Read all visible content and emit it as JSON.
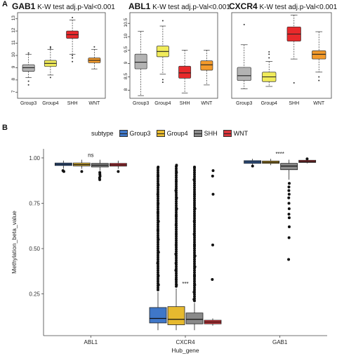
{
  "panels": {
    "A": {
      "letter": "A"
    },
    "B": {
      "letter": "B"
    }
  },
  "chart_data": [
    {
      "type": "boxplot",
      "gene": "GAB1",
      "test_label": "K-W test adj.p-Val<0.001",
      "categories": [
        "Group3",
        "Group4",
        "SHH",
        "WNT"
      ],
      "colors": [
        "#b3b3b3",
        "#f0eb5a",
        "#e8292b",
        "#f39a2b"
      ],
      "ylim": [
        6.5,
        13.5
      ],
      "yticks": [
        7,
        8,
        9,
        10,
        11,
        12,
        13
      ],
      "boxes": [
        {
          "min": 8.2,
          "q1": 8.7,
          "median": 9.0,
          "q3": 9.25,
          "max": 10.1,
          "outliers": [
            7.6,
            7.9,
            10.2
          ]
        },
        {
          "min": 8.4,
          "q1": 9.1,
          "median": 9.35,
          "q3": 9.6,
          "max": 10.5,
          "outliers": [
            8.2,
            10.6,
            10.7
          ]
        },
        {
          "min": 10.1,
          "q1": 11.4,
          "median": 11.7,
          "q3": 12.0,
          "max": 12.9,
          "outliers": [
            9.5,
            9.8,
            10.0,
            13.1
          ]
        },
        {
          "min": 8.9,
          "q1": 9.4,
          "median": 9.6,
          "q3": 9.8,
          "max": 10.5,
          "outliers": [
            10.7
          ]
        }
      ]
    },
    {
      "type": "boxplot",
      "gene": "ABL1",
      "test_label": "K-W test adj.p-Val<0.001",
      "categories": [
        "Group3",
        "Group4",
        "SHH",
        "WNT"
      ],
      "colors": [
        "#b3b3b3",
        "#f0eb5a",
        "#e8292b",
        "#f39a2b"
      ],
      "ylim": [
        7.7,
        10.9
      ],
      "yticks": [
        8.0,
        8.5,
        9.0,
        9.5,
        10.0,
        10.5
      ],
      "boxes": [
        {
          "min": 7.8,
          "q1": 8.8,
          "median": 9.05,
          "q3": 9.35,
          "max": 10.2,
          "outliers": []
        },
        {
          "min": 8.6,
          "q1": 9.25,
          "median": 9.45,
          "q3": 9.65,
          "max": 10.4,
          "outliers": [
            8.3,
            8.4,
            10.6
          ]
        },
        {
          "min": 7.9,
          "q1": 8.45,
          "median": 8.65,
          "q3": 8.9,
          "max": 9.5,
          "outliers": []
        },
        {
          "min": 8.2,
          "q1": 8.75,
          "median": 8.95,
          "q3": 9.1,
          "max": 9.5,
          "outliers": []
        }
      ]
    },
    {
      "type": "boxplot",
      "gene": "CXCR4",
      "test_label": "K-W test adj.p-Val<0.001",
      "categories": [
        "Group3",
        "Group4",
        "SHH",
        "WNT"
      ],
      "colors": [
        "#b3b3b3",
        "#f0eb5a",
        "#e8292b",
        "#f39a2b"
      ],
      "ylim": [
        4.2,
        11.4
      ],
      "yticks": [],
      "boxes": [
        {
          "min": 5.0,
          "q1": 5.7,
          "median": 6.1,
          "q3": 6.8,
          "max": 8.7,
          "outliers": [
            10.4
          ]
        },
        {
          "min": 5.2,
          "q1": 5.6,
          "median": 6.0,
          "q3": 6.4,
          "max": 7.3,
          "outliers": [
            7.6,
            7.9,
            8.1
          ]
        },
        {
          "min": 7.5,
          "q1": 9.0,
          "median": 9.6,
          "q3": 10.2,
          "max": 11.2,
          "outliers": [
            5.5
          ]
        },
        {
          "min": 6.4,
          "q1": 7.5,
          "median": 7.9,
          "q3": 8.2,
          "max": 9.8,
          "outliers": [
            5.7,
            6.0
          ]
        }
      ]
    },
    {
      "type": "boxplot",
      "xlabel": "Hub_gene",
      "ylabel": "Methylation_beta_value",
      "legend_title": "subtype",
      "legend_position": "top",
      "series": [
        {
          "name": "Group3",
          "color": "#3f77c8"
        },
        {
          "name": "Group4",
          "color": "#e6b92f"
        },
        {
          "name": "SHH",
          "color": "#8a8a8a"
        },
        {
          "name": "WNT",
          "color": "#d9343b"
        }
      ],
      "categories": [
        "ABL1",
        "CXCR4",
        "GAB1"
      ],
      "significance": [
        "ns",
        "***",
        "****"
      ],
      "ylim": [
        0.02,
        1.05
      ],
      "yticks": [
        0.25,
        0.5,
        0.75,
        1.0
      ],
      "ytick_labels": [
        "0.25",
        "0.50",
        "0.75",
        "1.00"
      ],
      "boxes": [
        [
          {
            "min": 0.94,
            "q1": 0.958,
            "median": 0.965,
            "q3": 0.972,
            "max": 0.985,
            "outliers": [
              0.925,
              0.93
            ]
          },
          {
            "min": 0.94,
            "q1": 0.956,
            "median": 0.963,
            "q3": 0.972,
            "max": 0.99,
            "outliers": [
              0.925
            ]
          },
          {
            "min": 0.93,
            "q1": 0.95,
            "median": 0.96,
            "q3": 0.97,
            "max": 0.99,
            "outliers": [
              0.92,
              0.91,
              0.9,
              0.89,
              0.88
            ]
          },
          {
            "min": 0.94,
            "q1": 0.955,
            "median": 0.962,
            "q3": 0.97,
            "max": 0.985,
            "outliers": [
              0.925
            ]
          }
        ],
        [
          {
            "min": 0.05,
            "q1": 0.09,
            "median": 0.115,
            "q3": 0.175,
            "max": 0.26,
            "outliers": [
              0.3,
              0.35,
              0.42,
              0.48,
              0.55,
              0.6,
              0.65,
              0.7,
              0.75,
              0.8,
              0.85,
              0.9,
              0.95
            ]
          },
          {
            "min": 0.05,
            "q1": 0.08,
            "median": 0.11,
            "q3": 0.18,
            "max": 0.28,
            "outliers": [
              0.3,
              0.33,
              0.38,
              0.42,
              0.47,
              0.52,
              0.58,
              0.63,
              0.68,
              0.72,
              0.78,
              0.82,
              0.87,
              0.92,
              0.96
            ]
          },
          {
            "min": 0.05,
            "q1": 0.085,
            "median": 0.11,
            "q3": 0.145,
            "max": 0.2,
            "outliers": [
              0.22,
              0.26,
              0.3,
              0.35,
              0.4,
              0.46,
              0.52,
              0.58,
              0.65,
              0.72,
              0.8,
              0.88,
              0.95
            ]
          },
          {
            "min": 0.075,
            "q1": 0.085,
            "median": 0.095,
            "q3": 0.105,
            "max": 0.115,
            "outliers": [
              0.33,
              0.52,
              0.8,
              0.9,
              0.93
            ]
          }
        ],
        [
          {
            "min": 0.96,
            "q1": 0.97,
            "median": 0.978,
            "q3": 0.985,
            "max": 0.995,
            "outliers": [
              0.955
            ]
          },
          {
            "min": 0.96,
            "q1": 0.97,
            "median": 0.976,
            "q3": 0.983,
            "max": 0.995,
            "outliers": []
          },
          {
            "min": 0.88,
            "q1": 0.935,
            "median": 0.955,
            "q3": 0.97,
            "max": 0.99,
            "outliers": [
              0.86,
              0.84,
              0.82,
              0.8,
              0.78,
              0.75,
              0.72,
              0.69,
              0.67,
              0.62,
              0.56,
              0.44
            ]
          },
          {
            "min": 0.97,
            "q1": 0.975,
            "median": 0.98,
            "q3": 0.987,
            "max": 0.995,
            "outliers": [
              0.995
            ]
          }
        ]
      ]
    }
  ]
}
